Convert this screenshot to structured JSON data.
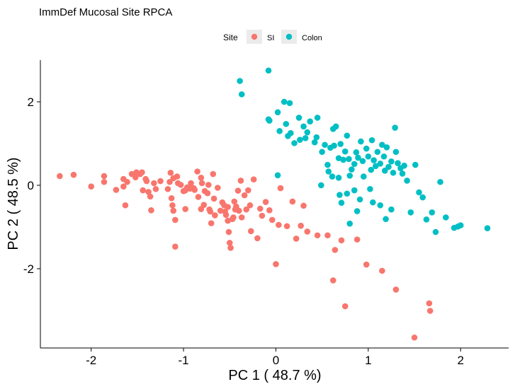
{
  "chart_data": {
    "type": "scatter",
    "title": "ImmDef Mucosal Site RPCA",
    "xlabel": "PC 1 ( 48.7 %)",
    "ylabel": "PC 2 ( 48.5 %)",
    "xlim": [
      -2.55,
      2.52
    ],
    "ylim": [
      -3.9,
      3.0
    ],
    "xticks": [
      -2,
      -1,
      0,
      1,
      2
    ],
    "yticks": [
      -2,
      0,
      2
    ],
    "grid": false,
    "legend": {
      "title": "Site",
      "position": "top"
    },
    "series": [
      {
        "name": "SI",
        "color": "#F8766D",
        "points": [
          [
            -2.34,
            0.22
          ],
          [
            -2.19,
            0.25
          ],
          [
            -2.0,
            -0.03
          ],
          [
            -1.86,
            0.08
          ],
          [
            -1.86,
            0.22
          ],
          [
            -1.73,
            -0.11
          ],
          [
            -1.65,
            0.15
          ],
          [
            -1.65,
            -0.03
          ],
          [
            -1.63,
            -0.48
          ],
          [
            -1.61,
            0.08
          ],
          [
            -1.56,
            0.27
          ],
          [
            -1.52,
            0.19
          ],
          [
            -1.51,
            0.31
          ],
          [
            -1.47,
            0.27
          ],
          [
            -1.45,
            0.31
          ],
          [
            -1.44,
            -0.12
          ],
          [
            -1.41,
            0.15
          ],
          [
            -1.4,
            0.1
          ],
          [
            -1.38,
            -0.16
          ],
          [
            -1.36,
            -0.27
          ],
          [
            -1.35,
            -0.6
          ],
          [
            -1.32,
            0.05
          ],
          [
            -1.3,
            -0.09
          ],
          [
            -1.25,
            0.1
          ],
          [
            -1.17,
            -0.09
          ],
          [
            -1.15,
            0.08
          ],
          [
            -1.14,
            0.3
          ],
          [
            -1.13,
            -0.31
          ],
          [
            -1.12,
            -0.48
          ],
          [
            -1.11,
            -0.61
          ],
          [
            -1.11,
            0.17
          ],
          [
            -1.09,
            -0.83
          ],
          [
            -1.09,
            -1.47
          ],
          [
            -1.07,
            0.21
          ],
          [
            -1.06,
            0.05
          ],
          [
            -1.03,
            0.01
          ],
          [
            -1.0,
            -0.14
          ],
          [
            -0.99,
            -0.13
          ],
          [
            -0.98,
            -0.57
          ],
          [
            -0.98,
            -0.12
          ],
          [
            -0.96,
            -0.05
          ],
          [
            -0.93,
            -0.08
          ],
          [
            -0.92,
            0.05
          ],
          [
            -0.89,
            -0.07
          ],
          [
            -0.88,
            -0.11
          ],
          [
            -0.85,
            0.33
          ],
          [
            -0.84,
            -0.28
          ],
          [
            -0.81,
            0.18
          ],
          [
            -0.81,
            -0.57
          ],
          [
            -0.8,
            0.05
          ],
          [
            -0.78,
            -0.47
          ],
          [
            -0.77,
            -0.14
          ],
          [
            -0.74,
            -0.19
          ],
          [
            -0.73,
            0.01
          ],
          [
            -0.72,
            -0.58
          ],
          [
            -0.71,
            -0.63
          ],
          [
            -0.7,
            -0.91
          ],
          [
            -0.68,
            0.27
          ],
          [
            -0.67,
            -0.32
          ],
          [
            -0.66,
            -0.72
          ],
          [
            -0.63,
            -0.06
          ],
          [
            -0.6,
            -0.61
          ],
          [
            -0.58,
            -0.41
          ],
          [
            -0.56,
            -0.48
          ],
          [
            -0.55,
            -0.63
          ],
          [
            -0.54,
            -0.71
          ],
          [
            -0.52,
            -0.52
          ],
          [
            -0.52,
            -0.85
          ],
          [
            -0.51,
            -1.12
          ],
          [
            -0.5,
            -1.38
          ],
          [
            -0.49,
            -1.5
          ],
          [
            -0.47,
            -0.81
          ],
          [
            -0.46,
            -0.77
          ],
          [
            -0.45,
            -0.39
          ],
          [
            -0.44,
            -0.58
          ],
          [
            -0.43,
            -0.51
          ],
          [
            -0.41,
            -0.13
          ],
          [
            -0.4,
            -0.61
          ],
          [
            -0.38,
            0.11
          ],
          [
            -0.37,
            -0.77
          ],
          [
            -0.34,
            -0.24
          ],
          [
            -0.32,
            -0.58
          ],
          [
            -0.3,
            -0.12
          ],
          [
            -0.28,
            -0.48
          ],
          [
            -0.27,
            -1.1
          ],
          [
            -0.24,
            0.14
          ],
          [
            -0.2,
            -1.27
          ],
          [
            -0.17,
            -0.56
          ],
          [
            -0.15,
            -0.73
          ],
          [
            -0.11,
            -0.4
          ],
          [
            -0.07,
            -0.6
          ],
          [
            -0.04,
            -0.83
          ],
          [
            0.0,
            -1.89
          ],
          [
            0.03,
            -0.95
          ],
          [
            0.05,
            -0.07
          ],
          [
            0.12,
            -0.98
          ],
          [
            0.18,
            -0.39
          ],
          [
            0.22,
            -1.28
          ],
          [
            0.27,
            -0.97
          ],
          [
            0.3,
            -0.49
          ],
          [
            0.34,
            -1.11
          ],
          [
            0.45,
            -1.2
          ],
          [
            0.56,
            -1.2
          ],
          [
            0.62,
            -2.28
          ],
          [
            0.64,
            -1.55
          ],
          [
            0.71,
            -1.32
          ],
          [
            0.75,
            -2.9
          ],
          [
            0.88,
            -1.3
          ],
          [
            0.98,
            -1.9
          ],
          [
            1.15,
            -2.05
          ],
          [
            1.3,
            -2.5
          ],
          [
            1.5,
            -3.65
          ],
          [
            1.66,
            -2.83
          ],
          [
            1.67,
            -3.01
          ]
        ]
      },
      {
        "name": "Colon",
        "color": "#00BFC4",
        "points": [
          [
            -0.39,
            2.5
          ],
          [
            -0.37,
            2.18
          ],
          [
            -0.08,
            2.75
          ],
          [
            -0.08,
            1.58
          ],
          [
            -0.07,
            1.55
          ],
          [
            0.02,
            1.75
          ],
          [
            0.04,
            1.3
          ],
          [
            0.09,
            2.0
          ],
          [
            0.11,
            1.47
          ],
          [
            0.13,
            1.18
          ],
          [
            0.15,
            1.97
          ],
          [
            0.16,
            1.25
          ],
          [
            0.2,
            1.01
          ],
          [
            0.25,
            1.62
          ],
          [
            0.26,
            1.09
          ],
          [
            0.3,
            1.41
          ],
          [
            0.32,
            1.13
          ],
          [
            0.34,
            1.27
          ],
          [
            0.37,
            1.53
          ],
          [
            0.42,
            1.03
          ],
          [
            0.44,
            1.15
          ],
          [
            0.45,
            1.62
          ],
          [
            0.5,
            0.8
          ],
          [
            0.53,
            0.97
          ],
          [
            0.56,
            0.49
          ],
          [
            0.57,
            0.33
          ],
          [
            0.59,
            0.9
          ],
          [
            0.62,
            1.35
          ],
          [
            0.63,
            0.95
          ],
          [
            0.65,
            1.41
          ],
          [
            0.68,
            0.65
          ],
          [
            0.7,
            0.99
          ],
          [
            0.73,
            0.61
          ],
          [
            0.75,
            0.81
          ],
          [
            0.77,
            1.19
          ],
          [
            0.79,
            0.63
          ],
          [
            0.8,
            0.23
          ],
          [
            0.82,
            0.38
          ],
          [
            0.85,
            0.51
          ],
          [
            0.87,
            0.79
          ],
          [
            0.89,
            0.66
          ],
          [
            0.92,
            1.05
          ],
          [
            0.94,
            0.58
          ],
          [
            0.95,
            0.21
          ],
          [
            0.98,
            0.88
          ],
          [
            1.0,
            0.69
          ],
          [
            1.03,
            0.37
          ],
          [
            1.04,
            1.08
          ],
          [
            1.06,
            0.6
          ],
          [
            1.08,
            0.46
          ],
          [
            1.1,
            0.8
          ],
          [
            1.13,
            0.52
          ],
          [
            1.15,
            0.97
          ],
          [
            1.17,
            0.69
          ],
          [
            1.18,
            0.35
          ],
          [
            1.2,
            0.91
          ],
          [
            1.22,
            0.44
          ],
          [
            1.25,
            0.57
          ],
          [
            1.27,
            0.3
          ],
          [
            1.29,
            1.38
          ],
          [
            1.3,
            0.8
          ],
          [
            1.32,
            0.53
          ],
          [
            1.35,
            0.41
          ],
          [
            1.37,
            0.28
          ],
          [
            1.39,
            0.47
          ],
          [
            1.42,
            0.11
          ],
          [
            1.46,
            -0.65
          ],
          [
            1.51,
            0.49
          ],
          [
            1.55,
            -0.17
          ],
          [
            1.59,
            -0.29
          ],
          [
            1.63,
            -0.82
          ],
          [
            1.69,
            -0.65
          ],
          [
            1.73,
            -1.12
          ],
          [
            1.78,
            0.08
          ],
          [
            1.84,
            -0.77
          ],
          [
            1.93,
            -1.02
          ],
          [
            1.97,
            -0.99
          ],
          [
            2.0,
            -0.96
          ],
          [
            2.29,
            -1.03
          ],
          [
            0.02,
            0.24
          ],
          [
            0.61,
            0.21
          ],
          [
            0.69,
            -0.23
          ],
          [
            0.71,
            -0.42
          ],
          [
            0.77,
            -0.2
          ],
          [
            0.8,
            -0.92
          ],
          [
            0.85,
            -0.12
          ],
          [
            0.88,
            -0.62
          ],
          [
            0.91,
            -0.34
          ],
          [
            1.02,
            -0.09
          ],
          [
            1.05,
            -0.41
          ],
          [
            1.13,
            -0.48
          ],
          [
            1.19,
            -0.81
          ],
          [
            1.25,
            -0.58
          ],
          [
            0.49,
            0.0
          ],
          [
            0.68,
            0.18
          ]
        ]
      }
    ]
  }
}
